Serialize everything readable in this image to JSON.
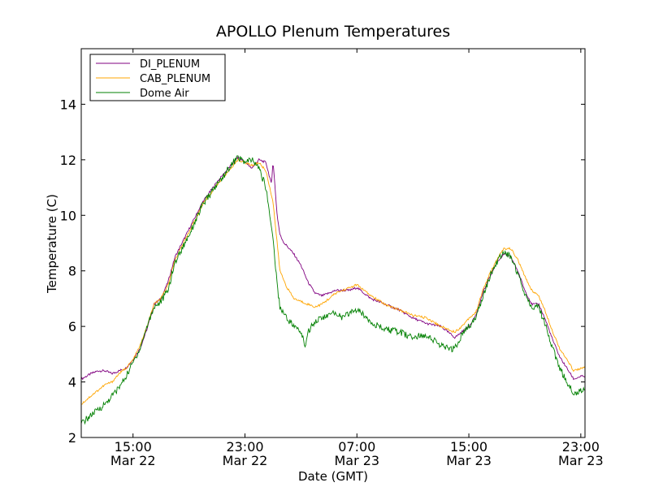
{
  "chart_data": {
    "type": "line",
    "title": "APOLLO Plenum Temperatures",
    "xlabel": "Date (GMT)",
    "ylabel": "Temperature (C)",
    "xlim": [
      11.3,
      47.3
    ],
    "ylim": [
      2,
      16
    ],
    "x_unit": "hours since Mar 22 00:00 GMT",
    "yticks": [
      {
        "value": 2,
        "label": "2"
      },
      {
        "value": 4,
        "label": "4"
      },
      {
        "value": 6,
        "label": "6"
      },
      {
        "value": 8,
        "label": "8"
      },
      {
        "value": 10,
        "label": "10"
      },
      {
        "value": 12,
        "label": "12"
      },
      {
        "value": 14,
        "label": "14"
      }
    ],
    "xticks": [
      {
        "value": 15,
        "time": "15:00",
        "date": "Mar 22"
      },
      {
        "value": 23,
        "time": "23:00",
        "date": "Mar 22"
      },
      {
        "value": 31,
        "time": "07:00",
        "date": "Mar 23"
      },
      {
        "value": 39,
        "time": "15:00",
        "date": "Mar 23"
      },
      {
        "value": 47,
        "time": "23:00",
        "date": "Mar 23"
      }
    ],
    "legend": {
      "position": "top-left"
    },
    "grid": false,
    "series": [
      {
        "name": "DI_PLENUM",
        "color": "#800080",
        "x": [
          11.3,
          12.0,
          12.5,
          13.0,
          13.5,
          14.0,
          14.5,
          15.0,
          15.5,
          16.0,
          16.5,
          17.0,
          17.5,
          18.0,
          19.0,
          20.0,
          21.0,
          22.0,
          22.5,
          23.0,
          23.5,
          24.0,
          24.5,
          24.9,
          25.0,
          25.3,
          25.5,
          25.8,
          26.0,
          26.5,
          27.0,
          27.5,
          28.0,
          28.5,
          29.0,
          29.5,
          30.0,
          30.5,
          31.0,
          31.5,
          32.0,
          32.5,
          33.0,
          34.0,
          35.0,
          36.0,
          37.0,
          37.5,
          38.0,
          38.5,
          39.0,
          39.5,
          40.0,
          40.5,
          41.0,
          41.5,
          42.0,
          42.5,
          43.0,
          43.5,
          44.0,
          44.5,
          45.0,
          45.5,
          46.0,
          46.5,
          47.0,
          47.3
        ],
        "y": [
          4.1,
          4.3,
          4.4,
          4.4,
          4.3,
          4.4,
          4.5,
          4.8,
          5.2,
          5.9,
          6.8,
          7.0,
          7.6,
          8.5,
          9.5,
          10.5,
          11.2,
          11.8,
          12.1,
          11.9,
          11.7,
          12.0,
          11.9,
          11.1,
          12.0,
          10.0,
          9.3,
          9.0,
          8.9,
          8.6,
          8.2,
          7.6,
          7.2,
          7.1,
          7.2,
          7.3,
          7.3,
          7.3,
          7.4,
          7.2,
          7.0,
          6.9,
          6.8,
          6.6,
          6.3,
          6.1,
          6.0,
          5.8,
          5.6,
          5.8,
          6.0,
          6.4,
          7.2,
          7.8,
          8.3,
          8.6,
          8.5,
          8.0,
          7.3,
          6.8,
          6.8,
          6.2,
          5.5,
          4.9,
          4.5,
          4.1,
          4.2,
          4.2
        ]
      },
      {
        "name": "CAB_PLENUM",
        "color": "#ffa500",
        "x": [
          11.3,
          12.0,
          12.5,
          13.0,
          13.5,
          14.0,
          14.5,
          15.0,
          15.5,
          16.0,
          16.5,
          17.0,
          17.5,
          18.0,
          19.0,
          20.0,
          21.0,
          22.0,
          22.5,
          23.0,
          23.5,
          24.0,
          24.5,
          25.0,
          25.2,
          25.5,
          26.0,
          26.5,
          27.0,
          27.5,
          28.0,
          28.5,
          29.0,
          29.5,
          30.0,
          30.5,
          31.0,
          31.5,
          32.0,
          33.0,
          34.0,
          35.0,
          36.0,
          37.0,
          37.5,
          38.0,
          38.5,
          39.0,
          39.5,
          40.0,
          40.5,
          41.0,
          41.5,
          42.0,
          42.5,
          43.0,
          43.5,
          44.0,
          44.5,
          45.0,
          45.5,
          46.0,
          46.5,
          47.0,
          47.3
        ],
        "y": [
          3.2,
          3.5,
          3.7,
          3.9,
          4.0,
          4.3,
          4.5,
          4.8,
          5.3,
          6.0,
          6.8,
          7.0,
          7.5,
          8.4,
          9.4,
          10.4,
          11.1,
          11.7,
          12.0,
          11.9,
          11.8,
          11.9,
          11.6,
          10.5,
          9.5,
          8.0,
          7.4,
          7.0,
          6.9,
          6.8,
          6.7,
          6.8,
          7.0,
          7.2,
          7.3,
          7.4,
          7.5,
          7.3,
          7.1,
          6.8,
          6.6,
          6.4,
          6.3,
          6.0,
          5.9,
          5.8,
          6.0,
          6.3,
          6.5,
          7.3,
          7.9,
          8.4,
          8.8,
          8.8,
          8.4,
          7.8,
          7.3,
          7.1,
          6.5,
          5.8,
          5.2,
          4.8,
          4.4,
          4.5,
          4.5
        ]
      },
      {
        "name": "Dome Air",
        "color": "#008000",
        "x": [
          11.3,
          12.0,
          12.5,
          13.0,
          13.5,
          14.0,
          14.5,
          15.0,
          15.5,
          16.0,
          16.5,
          17.0,
          17.5,
          18.0,
          19.0,
          20.0,
          21.0,
          22.0,
          22.5,
          23.0,
          23.5,
          24.0,
          24.5,
          25.0,
          25.3,
          25.5,
          26.0,
          26.5,
          27.0,
          27.3,
          27.5,
          28.0,
          28.5,
          29.0,
          29.5,
          30.0,
          30.5,
          31.0,
          31.5,
          32.0,
          32.5,
          33.0,
          34.0,
          35.0,
          36.0,
          37.0,
          37.5,
          38.0,
          38.5,
          39.0,
          39.5,
          40.0,
          40.5,
          41.0,
          41.5,
          42.0,
          42.5,
          43.0,
          43.5,
          44.0,
          44.5,
          45.0,
          45.5,
          46.0,
          46.5,
          47.0,
          47.3
        ],
        "y": [
          2.5,
          2.8,
          3.0,
          3.2,
          3.5,
          3.8,
          4.2,
          4.7,
          5.2,
          6.0,
          6.7,
          6.9,
          7.3,
          8.3,
          9.3,
          10.4,
          11.1,
          11.8,
          12.1,
          11.9,
          12.0,
          11.7,
          11.0,
          9.2,
          7.5,
          6.7,
          6.3,
          6.0,
          5.8,
          5.3,
          5.8,
          6.2,
          6.3,
          6.4,
          6.5,
          6.3,
          6.5,
          6.6,
          6.4,
          6.2,
          6.0,
          5.9,
          5.8,
          5.6,
          5.7,
          5.3,
          5.2,
          5.2,
          5.7,
          6.0,
          6.3,
          7.1,
          7.8,
          8.3,
          8.7,
          8.5,
          7.9,
          7.2,
          6.7,
          6.7,
          6.0,
          5.2,
          4.5,
          4.0,
          3.6,
          3.7,
          3.7
        ]
      }
    ]
  }
}
